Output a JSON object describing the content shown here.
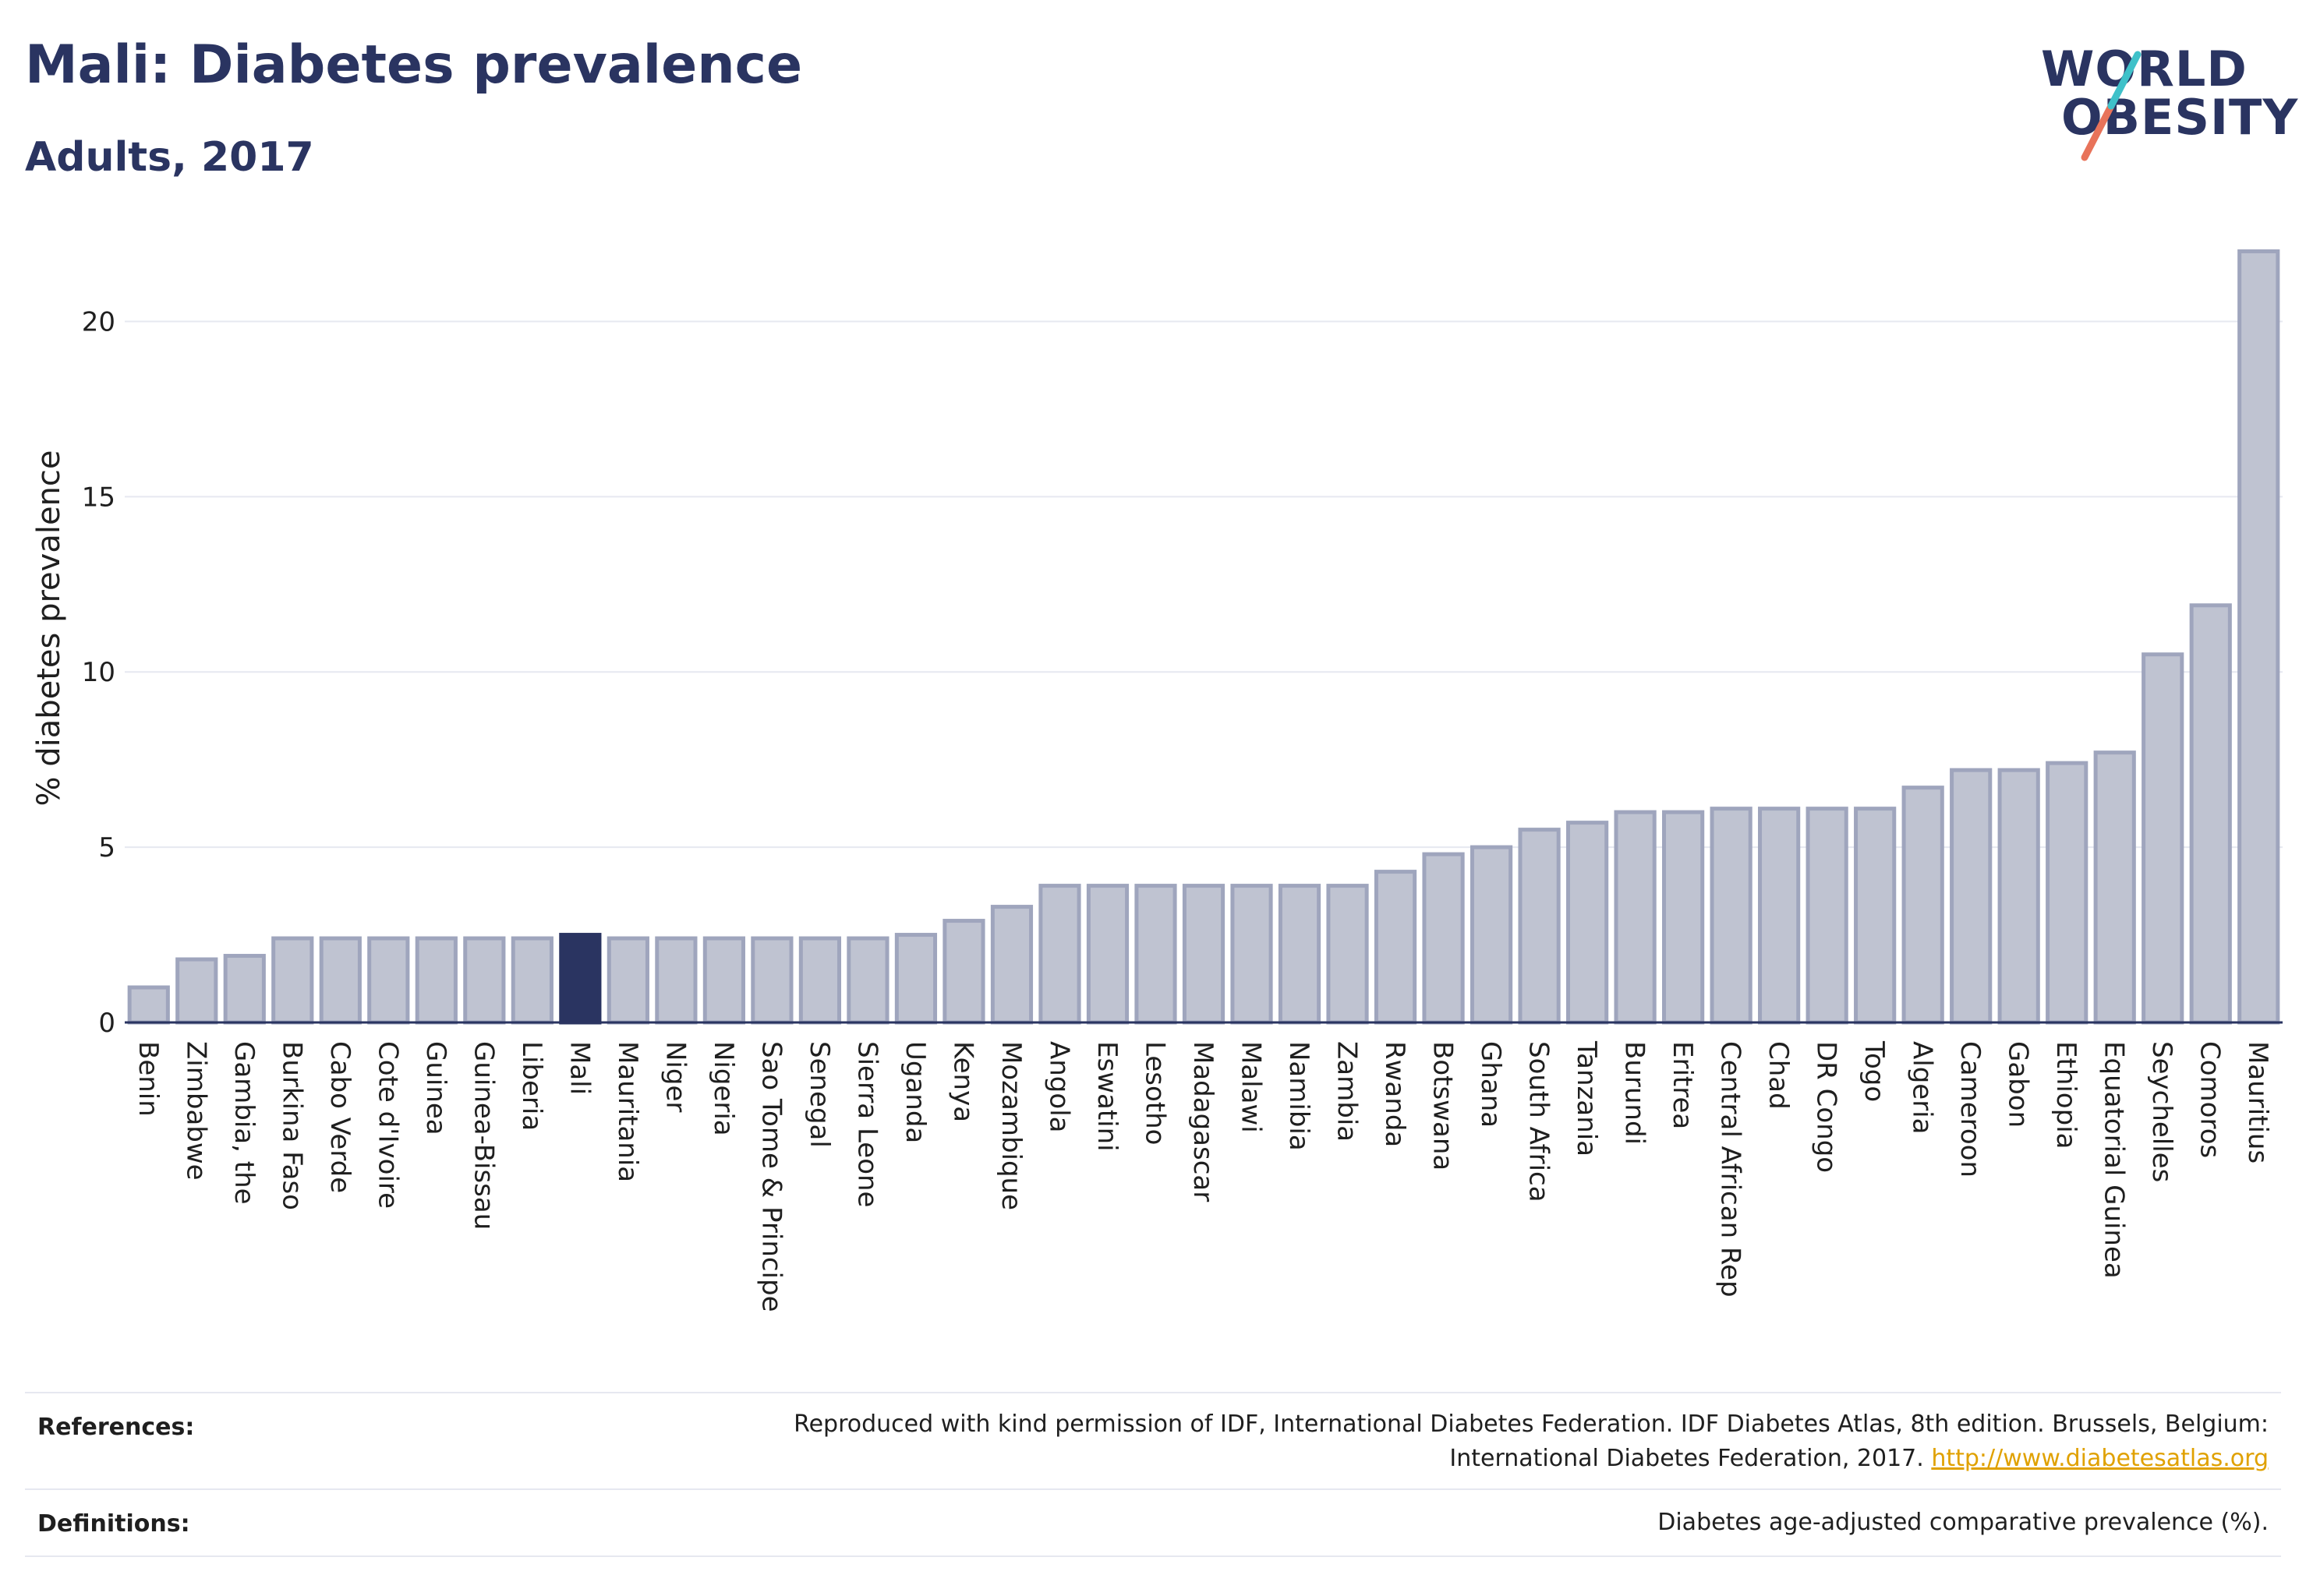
{
  "header": {
    "title": "Mali: Diabetes prevalence",
    "subtitle": "Adults, 2017"
  },
  "logo": {
    "line1": "WORLD",
    "line2": "OBESITY",
    "accent_teal": "#3fc1c9",
    "accent_red": "#e8735a"
  },
  "colors": {
    "bar_default": "#bfc3d1",
    "bar_border": "#9fa5bd",
    "bar_highlight": "#2a3461",
    "text_dark": "#2a3461"
  },
  "chart_data": {
    "type": "bar",
    "ylabel": "% diabetes prevalence",
    "xlabel": "",
    "ylim": [
      0,
      22.5
    ],
    "yticks": [
      0,
      5,
      10,
      15,
      20
    ],
    "grid": true,
    "highlight": "Mali",
    "categories": [
      "Benin",
      "Zimbabwe",
      "Gambia, the",
      "Burkina Faso",
      "Cabo Verde",
      "Cote d'Ivoire",
      "Guinea",
      "Guinea-Bissau",
      "Liberia",
      "Mali",
      "Mauritania",
      "Niger",
      "Nigeria",
      "Sao Tome & Principe",
      "Senegal",
      "Sierra Leone",
      "Uganda",
      "Kenya",
      "Mozambique",
      "Angola",
      "Eswatini",
      "Lesotho",
      "Madagascar",
      "Malawi",
      "Namibia",
      "Zambia",
      "Rwanda",
      "Botswana",
      "Ghana",
      "South Africa",
      "Tanzania",
      "Burundi",
      "Eritrea",
      "Central African Rep",
      "Chad",
      "DR Congo",
      "Togo",
      "Algeria",
      "Cameroon",
      "Gabon",
      "Ethiopia",
      "Equatorial Guinea",
      "Seychelles",
      "Comoros",
      "Mauritius"
    ],
    "values": [
      1.0,
      1.8,
      1.9,
      2.4,
      2.4,
      2.4,
      2.4,
      2.4,
      2.4,
      2.5,
      2.4,
      2.4,
      2.4,
      2.4,
      2.4,
      2.4,
      2.5,
      2.9,
      3.3,
      3.9,
      3.9,
      3.9,
      3.9,
      3.9,
      3.9,
      3.9,
      4.3,
      4.8,
      5.0,
      5.5,
      5.7,
      6.0,
      6.0,
      6.1,
      6.1,
      6.1,
      6.1,
      6.7,
      7.2,
      7.2,
      7.4,
      7.7,
      10.5,
      11.9,
      22.0
    ]
  },
  "references": {
    "label": "References:",
    "line1": "Reproduced with kind permission of IDF, International Diabetes Federation. IDF Diabetes Atlas, 8th edition. Brussels, Belgium:",
    "line2": "International Diabetes Federation, 2017.",
    "link": "http://www.diabetesatlas.org"
  },
  "definitions": {
    "label": "Definitions:",
    "text": "Diabetes age-adjusted comparative prevalence (%)."
  }
}
